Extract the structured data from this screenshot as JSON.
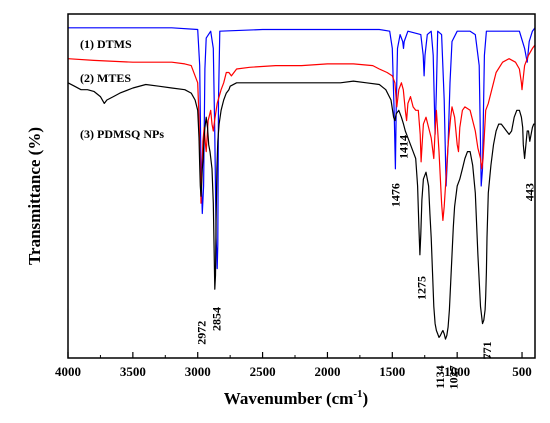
{
  "chart_data": {
    "type": "line",
    "title": "",
    "xlabel": "Wavenumber (cm",
    "xlabel_sup": "-1",
    "xlabel_end": ")",
    "ylabel": "Transmittance (%)",
    "xlim": [
      4000,
      400
    ],
    "x_reversed": true,
    "ylim": [
      0,
      100
    ],
    "grid": false,
    "x_ticks": [
      4000,
      3500,
      3000,
      2500,
      2000,
      1500,
      1000,
      500
    ],
    "x_tick_labels": [
      "4000",
      "3500",
      "3000",
      "2500",
      "2000",
      "1500",
      "1000",
      "500"
    ],
    "legend": "in-plot labels, top-left",
    "series": [
      {
        "name": "(1) DTMS",
        "color": "#0000ff",
        "points": [
          [
            4000,
            96
          ],
          [
            3200,
            96
          ],
          [
            3000,
            95.5
          ],
          [
            2985,
            85
          ],
          [
            2975,
            55
          ],
          [
            2965,
            42
          ],
          [
            2955,
            50
          ],
          [
            2945,
            84
          ],
          [
            2935,
            93
          ],
          [
            2900,
            95
          ],
          [
            2880,
            90
          ],
          [
            2868,
            65
          ],
          [
            2858,
            35
          ],
          [
            2850,
            26
          ],
          [
            2845,
            33
          ],
          [
            2840,
            75
          ],
          [
            2830,
            95
          ],
          [
            2500,
            95.5
          ],
          [
            2000,
            95.5
          ],
          [
            1600,
            95.5
          ],
          [
            1520,
            95
          ],
          [
            1500,
            90
          ],
          [
            1485,
            70
          ],
          [
            1476,
            55
          ],
          [
            1470,
            72
          ],
          [
            1460,
            90
          ],
          [
            1440,
            94
          ],
          [
            1420,
            92
          ],
          [
            1414,
            90
          ],
          [
            1408,
            92
          ],
          [
            1380,
            95
          ],
          [
            1280,
            94
          ],
          [
            1262,
            88
          ],
          [
            1255,
            82
          ],
          [
            1248,
            88
          ],
          [
            1230,
            94
          ],
          [
            1200,
            95
          ],
          [
            1185,
            88
          ],
          [
            1170,
            65
          ],
          [
            1160,
            78
          ],
          [
            1150,
            95
          ],
          [
            1120,
            94
          ],
          [
            1100,
            75
          ],
          [
            1085,
            50
          ],
          [
            1070,
            62
          ],
          [
            1055,
            80
          ],
          [
            1040,
            92
          ],
          [
            1000,
            95
          ],
          [
            900,
            95
          ],
          [
            860,
            94
          ],
          [
            830,
            85
          ],
          [
            815,
            50
          ],
          [
            805,
            55
          ],
          [
            790,
            88
          ],
          [
            775,
            95
          ],
          [
            600,
            95
          ],
          [
            520,
            95
          ],
          [
            480,
            90
          ],
          [
            460,
            86
          ],
          [
            445,
            92
          ],
          [
            420,
            95
          ],
          [
            400,
            96
          ]
        ]
      },
      {
        "name": "(2) MTES",
        "color": "#ff0000",
        "points": [
          [
            4000,
            87
          ],
          [
            3800,
            86.5
          ],
          [
            3500,
            86
          ],
          [
            3200,
            86
          ],
          [
            3100,
            85.5
          ],
          [
            3050,
            85
          ],
          [
            3000,
            80
          ],
          [
            2990,
            70
          ],
          [
            2980,
            55
          ],
          [
            2975,
            45
          ],
          [
            2970,
            52
          ],
          [
            2960,
            63
          ],
          [
            2950,
            67
          ],
          [
            2940,
            62
          ],
          [
            2935,
            60
          ],
          [
            2928,
            64
          ],
          [
            2920,
            69
          ],
          [
            2900,
            72
          ],
          [
            2890,
            68
          ],
          [
            2880,
            66
          ],
          [
            2870,
            69
          ],
          [
            2850,
            74
          ],
          [
            2820,
            78
          ],
          [
            2800,
            80
          ],
          [
            2780,
            83
          ],
          [
            2760,
            83
          ],
          [
            2740,
            82
          ],
          [
            2700,
            84
          ],
          [
            2600,
            84.5
          ],
          [
            2400,
            85
          ],
          [
            2200,
            85
          ],
          [
            2000,
            85.5
          ],
          [
            1800,
            85.5
          ],
          [
            1650,
            85
          ],
          [
            1600,
            84
          ],
          [
            1540,
            83
          ],
          [
            1500,
            82
          ],
          [
            1480,
            80
          ],
          [
            1465,
            73
          ],
          [
            1450,
            78
          ],
          [
            1430,
            80
          ],
          [
            1415,
            78
          ],
          [
            1400,
            72
          ],
          [
            1390,
            69
          ],
          [
            1380,
            74
          ],
          [
            1360,
            76
          ],
          [
            1340,
            73
          ],
          [
            1320,
            72
          ],
          [
            1300,
            72
          ],
          [
            1285,
            65
          ],
          [
            1278,
            57
          ],
          [
            1270,
            62
          ],
          [
            1260,
            68
          ],
          [
            1240,
            70
          ],
          [
            1220,
            67
          ],
          [
            1200,
            64
          ],
          [
            1180,
            58
          ],
          [
            1170,
            66
          ],
          [
            1160,
            72
          ],
          [
            1140,
            60
          ],
          [
            1120,
            45
          ],
          [
            1110,
            40
          ],
          [
            1100,
            44
          ],
          [
            1090,
            50
          ],
          [
            1070,
            62
          ],
          [
            1050,
            70
          ],
          [
            1040,
            73
          ],
          [
            1020,
            70
          ],
          [
            1000,
            62
          ],
          [
            990,
            60
          ],
          [
            980,
            67
          ],
          [
            960,
            72
          ],
          [
            940,
            73
          ],
          [
            900,
            72
          ],
          [
            860,
            66
          ],
          [
            840,
            61
          ],
          [
            820,
            58
          ],
          [
            810,
            55
          ],
          [
            800,
            58
          ],
          [
            790,
            65
          ],
          [
            780,
            72
          ],
          [
            760,
            74
          ],
          [
            720,
            80
          ],
          [
            700,
            83
          ],
          [
            650,
            86
          ],
          [
            600,
            87
          ],
          [
            550,
            86
          ],
          [
            520,
            84
          ],
          [
            505,
            80
          ],
          [
            500,
            78
          ],
          [
            495,
            80
          ],
          [
            480,
            85
          ],
          [
            450,
            88
          ],
          [
            420,
            90
          ],
          [
            400,
            91
          ]
        ]
      },
      {
        "name": "(3) PDMSQ NPs",
        "color": "#000000",
        "points": [
          [
            4000,
            80
          ],
          [
            3950,
            79
          ],
          [
            3900,
            78
          ],
          [
            3850,
            78
          ],
          [
            3800,
            77.5
          ],
          [
            3750,
            76
          ],
          [
            3720,
            74
          ],
          [
            3700,
            75
          ],
          [
            3650,
            76
          ],
          [
            3600,
            77
          ],
          [
            3500,
            78.5
          ],
          [
            3400,
            79.5
          ],
          [
            3300,
            79
          ],
          [
            3200,
            78.5
          ],
          [
            3100,
            78
          ],
          [
            3050,
            77
          ],
          [
            3020,
            75
          ],
          [
            3000,
            72
          ],
          [
            2990,
            64
          ],
          [
            2985,
            56
          ],
          [
            2980,
            50
          ],
          [
            2975,
            47
          ],
          [
            2970,
            50
          ],
          [
            2965,
            55
          ],
          [
            2958,
            58
          ],
          [
            2952,
            63
          ],
          [
            2945,
            67
          ],
          [
            2935,
            70
          ],
          [
            2925,
            67
          ],
          [
            2915,
            62
          ],
          [
            2905,
            60
          ],
          [
            2890,
            55
          ],
          [
            2880,
            45
          ],
          [
            2873,
            30
          ],
          [
            2868,
            20
          ],
          [
            2863,
            24
          ],
          [
            2858,
            40
          ],
          [
            2852,
            55
          ],
          [
            2845,
            63
          ],
          [
            2835,
            68
          ],
          [
            2820,
            72
          ],
          [
            2800,
            75
          ],
          [
            2780,
            77
          ],
          [
            2760,
            78
          ],
          [
            2750,
            79
          ],
          [
            2700,
            80
          ],
          [
            2500,
            80
          ],
          [
            2200,
            80
          ],
          [
            2000,
            80
          ],
          [
            1900,
            80
          ],
          [
            1800,
            80.5
          ],
          [
            1700,
            80
          ],
          [
            1600,
            79.5
          ],
          [
            1550,
            78
          ],
          [
            1510,
            75
          ],
          [
            1490,
            70
          ],
          [
            1480,
            69
          ],
          [
            1470,
            71
          ],
          [
            1450,
            72
          ],
          [
            1430,
            70
          ],
          [
            1414,
            68
          ],
          [
            1400,
            66
          ],
          [
            1380,
            64
          ],
          [
            1360,
            62
          ],
          [
            1340,
            60
          ],
          [
            1320,
            58
          ],
          [
            1305,
            50
          ],
          [
            1295,
            38
          ],
          [
            1287,
            30
          ],
          [
            1280,
            36
          ],
          [
            1272,
            46
          ],
          [
            1260,
            52
          ],
          [
            1240,
            54
          ],
          [
            1220,
            50
          ],
          [
            1210,
            42
          ],
          [
            1200,
            35
          ],
          [
            1190,
            25
          ],
          [
            1180,
            15
          ],
          [
            1170,
            10
          ],
          [
            1160,
            8
          ],
          [
            1150,
            7
          ],
          [
            1140,
            6
          ],
          [
            1130,
            6.5
          ],
          [
            1118,
            7.5
          ],
          [
            1110,
            8
          ],
          [
            1100,
            7
          ],
          [
            1090,
            5.5
          ],
          [
            1080,
            6.5
          ],
          [
            1070,
            9
          ],
          [
            1060,
            14
          ],
          [
            1050,
            22
          ],
          [
            1040,
            30
          ],
          [
            1030,
            38
          ],
          [
            1020,
            44
          ],
          [
            1000,
            50
          ],
          [
            980,
            52
          ],
          [
            960,
            55
          ],
          [
            940,
            58
          ],
          [
            920,
            60
          ],
          [
            900,
            60
          ],
          [
            880,
            56
          ],
          [
            860,
            48
          ],
          [
            840,
            30
          ],
          [
            820,
            15
          ],
          [
            805,
            10
          ],
          [
            795,
            11
          ],
          [
            785,
            14
          ],
          [
            780,
            18
          ],
          [
            775,
            25
          ],
          [
            770,
            35
          ],
          [
            760,
            48
          ],
          [
            740,
            56
          ],
          [
            720,
            62
          ],
          [
            700,
            66
          ],
          [
            680,
            68
          ],
          [
            660,
            68
          ],
          [
            640,
            67
          ],
          [
            620,
            66
          ],
          [
            600,
            65
          ],
          [
            580,
            66
          ],
          [
            560,
            70
          ],
          [
            540,
            72
          ],
          [
            520,
            72
          ],
          [
            505,
            70
          ],
          [
            495,
            67
          ],
          [
            490,
            62
          ],
          [
            480,
            58
          ],
          [
            470,
            62
          ],
          [
            460,
            66
          ],
          [
            450,
            66
          ],
          [
            440,
            63
          ],
          [
            430,
            65
          ],
          [
            420,
            67
          ],
          [
            410,
            68
          ],
          [
            400,
            68
          ]
        ]
      }
    ],
    "annotations": [
      {
        "text": "2972",
        "x": 2972,
        "y": 12,
        "rotate": -90
      },
      {
        "text": "2854",
        "x": 2854,
        "y": 16,
        "rotate": -90
      },
      {
        "text": "1476",
        "x": 1476,
        "y": 52,
        "rotate": -90
      },
      {
        "text": "1414",
        "x": 1414,
        "y": 66,
        "rotate": -90
      },
      {
        "text": "1275",
        "x": 1275,
        "y": 25,
        "rotate": -90
      },
      {
        "text": "1134",
        "x": 1134,
        "y": -1,
        "rotate": -90
      },
      {
        "text": "1027",
        "x": 1027,
        "y": -1,
        "rotate": -90
      },
      {
        "text": "771",
        "x": 771,
        "y": 6,
        "rotate": -90
      },
      {
        "text": "443",
        "x": 443,
        "y": 52,
        "rotate": -90
      }
    ]
  }
}
